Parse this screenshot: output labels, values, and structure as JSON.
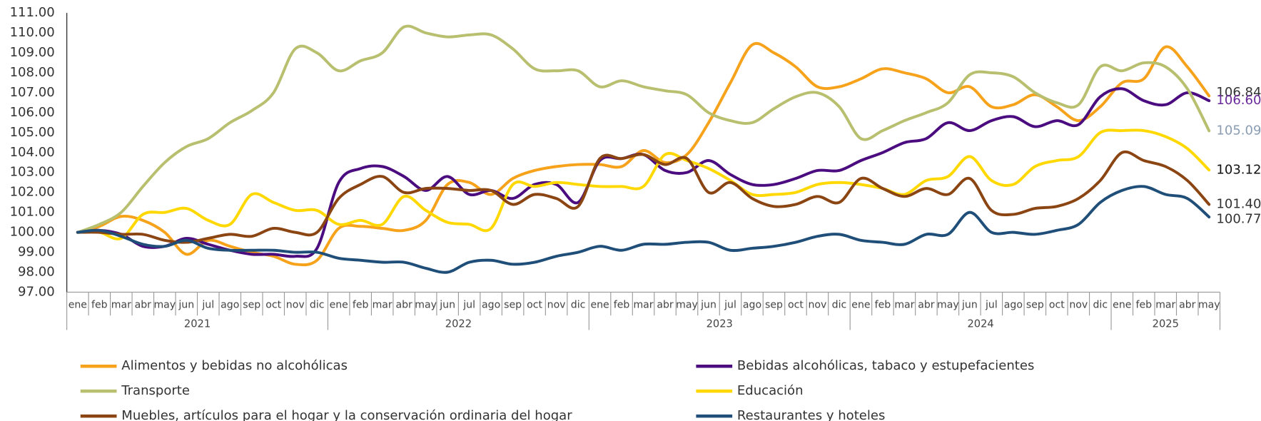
{
  "chart_data": {
    "type": "line",
    "categories": [
      "ene",
      "feb",
      "mar",
      "abr",
      "may",
      "jun",
      "jul",
      "ago",
      "sep",
      "oct",
      "nov",
      "dic",
      "ene",
      "feb",
      "mar",
      "abr",
      "may",
      "jun",
      "jul",
      "ago",
      "sep",
      "oct",
      "nov",
      "dic",
      "ene",
      "feb",
      "mar",
      "abr",
      "may",
      "jun",
      "jul",
      "ago",
      "sep",
      "oct",
      "nov",
      "dic",
      "ene",
      "feb",
      "mar",
      "abr",
      "may",
      "jun",
      "jul",
      "ago",
      "sep",
      "oct",
      "nov",
      "dic",
      "ene",
      "feb",
      "mar",
      "abr",
      "may"
    ],
    "years": [
      "2021",
      "2022",
      "2023",
      "2024",
      "2025"
    ],
    "ylim": [
      97,
      111
    ],
    "yticks": [
      {
        "value": 97,
        "label": "97.00"
      },
      {
        "value": 98,
        "label": "98.00"
      },
      {
        "value": 99,
        "label": "99.00"
      },
      {
        "value": 100,
        "label": "100.00"
      },
      {
        "value": 101,
        "label": "101.00"
      },
      {
        "value": 102,
        "label": "102.00"
      },
      {
        "value": 103,
        "label": "103.00"
      },
      {
        "value": 104,
        "label": "104.00"
      },
      {
        "value": 105,
        "label": "105.00"
      },
      {
        "value": 106,
        "label": "106.00"
      },
      {
        "value": 107,
        "label": "107.00"
      },
      {
        "value": 108,
        "label": "108.00"
      },
      {
        "value": 109,
        "label": "109.00"
      },
      {
        "value": 110,
        "label": "110.00"
      },
      {
        "value": 111,
        "label": "111.00"
      }
    ],
    "grid": false,
    "series": [
      {
        "name": "Alimentos y bebidas no alcohólicas",
        "color": "#f7a21b",
        "label_color": "#333333",
        "values": [
          100.0,
          100.3,
          100.8,
          100.6,
          100.0,
          98.9,
          99.6,
          99.3,
          99.0,
          98.8,
          98.4,
          98.6,
          100.2,
          100.3,
          100.2,
          100.1,
          100.6,
          102.4,
          102.5,
          101.9,
          102.7,
          103.1,
          103.3,
          103.4,
          103.4,
          103.3,
          104.1,
          103.5,
          103.9,
          105.5,
          107.5,
          109.4,
          109.0,
          108.3,
          107.3,
          107.3,
          107.7,
          108.2,
          108.0,
          107.7,
          107.0,
          107.3,
          106.3,
          106.4,
          106.9,
          106.3,
          105.6,
          106.3,
          107.5,
          107.7,
          109.3,
          108.3,
          106.84
        ],
        "value_labels": [
          null,
          null,
          null,
          null,
          null,
          null,
          null,
          null,
          null,
          null,
          null,
          null,
          null,
          null,
          null,
          null,
          null,
          null,
          null,
          null,
          null,
          null,
          null,
          null,
          null,
          null,
          null,
          null,
          null,
          null,
          null,
          null,
          null,
          null,
          null,
          null,
          null,
          null,
          null,
          null,
          null,
          null,
          null,
          null,
          null,
          null,
          null,
          null,
          null,
          null,
          null,
          null,
          "106.84"
        ]
      },
      {
        "name": "Bebidas alcohólicas, tabaco y estupefacientes",
        "color": "#4b0c7f",
        "label_color": "#6a2a9a",
        "values": [
          100.0,
          100.1,
          99.9,
          99.3,
          99.3,
          99.7,
          99.4,
          99.1,
          98.9,
          98.9,
          98.8,
          99.2,
          102.5,
          103.2,
          103.3,
          102.8,
          102.1,
          102.8,
          101.9,
          102.1,
          101.7,
          102.4,
          102.4,
          101.5,
          103.6,
          103.7,
          103.9,
          103.1,
          103.0,
          103.6,
          102.9,
          102.4,
          102.4,
          102.7,
          103.1,
          103.1,
          103.6,
          104.0,
          104.5,
          104.7,
          105.5,
          105.1,
          105.6,
          105.8,
          105.3,
          105.6,
          105.4,
          106.8,
          107.2,
          106.6,
          106.4,
          107.0,
          106.6
        ],
        "value_labels": [
          null,
          null,
          null,
          null,
          null,
          null,
          null,
          null,
          null,
          null,
          null,
          null,
          null,
          null,
          null,
          null,
          null,
          null,
          null,
          null,
          null,
          null,
          null,
          null,
          null,
          null,
          null,
          null,
          null,
          null,
          null,
          null,
          null,
          null,
          null,
          null,
          null,
          null,
          null,
          null,
          null,
          null,
          null,
          null,
          null,
          null,
          null,
          null,
          null,
          null,
          null,
          null,
          "106.60"
        ]
      },
      {
        "name": "Transporte",
        "color": "#b8bf6e",
        "label_color": "#8a9db3",
        "values": [
          100.0,
          100.4,
          101.0,
          102.3,
          103.5,
          104.3,
          104.7,
          105.5,
          106.1,
          107.0,
          109.2,
          109.0,
          108.1,
          108.6,
          109.0,
          110.3,
          110.0,
          109.8,
          109.9,
          109.9,
          109.2,
          108.2,
          108.1,
          108.1,
          107.3,
          107.6,
          107.3,
          107.1,
          106.9,
          106.0,
          105.6,
          105.5,
          106.2,
          106.8,
          107.0,
          106.3,
          104.7,
          105.1,
          105.6,
          106.0,
          106.5,
          107.9,
          108.0,
          107.8,
          107.0,
          106.5,
          106.4,
          108.3,
          108.1,
          108.5,
          108.3,
          107.2,
          105.09
        ],
        "value_labels": [
          null,
          null,
          null,
          null,
          null,
          null,
          null,
          null,
          null,
          null,
          null,
          null,
          null,
          null,
          null,
          null,
          null,
          null,
          null,
          null,
          null,
          null,
          null,
          null,
          null,
          null,
          null,
          null,
          null,
          null,
          null,
          null,
          null,
          null,
          null,
          null,
          null,
          null,
          null,
          null,
          null,
          null,
          null,
          null,
          null,
          null,
          null,
          null,
          null,
          null,
          null,
          null,
          "105.09"
        ]
      },
      {
        "name": "Educación",
        "color": "#ffd800",
        "label_color": "#111111",
        "values": [
          100.0,
          100.0,
          99.7,
          100.9,
          101.0,
          101.2,
          100.6,
          100.4,
          101.9,
          101.5,
          101.1,
          101.1,
          100.4,
          100.6,
          100.4,
          101.8,
          101.1,
          100.5,
          100.4,
          100.2,
          102.4,
          102.3,
          102.5,
          102.4,
          102.3,
          102.3,
          102.3,
          103.9,
          103.6,
          103.2,
          102.6,
          101.9,
          101.9,
          102.0,
          102.4,
          102.5,
          102.4,
          102.2,
          101.9,
          102.6,
          102.8,
          103.8,
          102.6,
          102.4,
          103.3,
          103.6,
          103.8,
          105.0,
          105.1,
          105.1,
          104.8,
          104.2,
          103.12
        ],
        "value_labels": [
          null,
          null,
          null,
          null,
          null,
          null,
          null,
          null,
          null,
          null,
          null,
          null,
          null,
          null,
          null,
          null,
          null,
          null,
          null,
          null,
          null,
          null,
          null,
          null,
          null,
          null,
          null,
          null,
          null,
          null,
          null,
          null,
          null,
          null,
          null,
          null,
          null,
          null,
          null,
          null,
          null,
          null,
          null,
          null,
          null,
          null,
          null,
          null,
          null,
          null,
          null,
          null,
          "103.12"
        ]
      },
      {
        "name": "Muebles, artículos para el hogar y la conservación ordinaria del hogar",
        "color": "#8b4513",
        "label_color": "#333333",
        "values": [
          100.0,
          100.0,
          99.9,
          99.9,
          99.6,
          99.5,
          99.7,
          99.9,
          99.8,
          100.2,
          100.0,
          100.0,
          101.7,
          102.4,
          102.8,
          102.0,
          102.2,
          102.2,
          102.1,
          102.1,
          101.4,
          101.9,
          101.7,
          101.3,
          103.7,
          103.7,
          103.9,
          103.4,
          103.7,
          102.0,
          102.5,
          101.7,
          101.3,
          101.4,
          101.8,
          101.5,
          102.7,
          102.2,
          101.8,
          102.2,
          101.9,
          102.7,
          101.1,
          100.9,
          101.2,
          101.3,
          101.7,
          102.6,
          104.0,
          103.6,
          103.3,
          102.6,
          101.4
        ],
        "value_labels": [
          null,
          null,
          null,
          null,
          null,
          null,
          null,
          null,
          null,
          null,
          null,
          null,
          null,
          null,
          null,
          null,
          null,
          null,
          null,
          null,
          null,
          null,
          null,
          null,
          null,
          null,
          null,
          null,
          null,
          null,
          null,
          null,
          null,
          null,
          null,
          null,
          null,
          null,
          null,
          null,
          null,
          null,
          null,
          null,
          null,
          null,
          null,
          null,
          null,
          null,
          null,
          null,
          "101.40"
        ]
      },
      {
        "name": "Restaurantes y hoteles",
        "color": "#1f4e79",
        "label_color": "#333333",
        "values": [
          100.0,
          100.1,
          99.8,
          99.4,
          99.3,
          99.6,
          99.2,
          99.1,
          99.1,
          99.1,
          99.0,
          99.0,
          98.7,
          98.6,
          98.5,
          98.5,
          98.2,
          98.0,
          98.5,
          98.6,
          98.4,
          98.5,
          98.8,
          99.0,
          99.3,
          99.1,
          99.4,
          99.4,
          99.5,
          99.5,
          99.1,
          99.2,
          99.3,
          99.5,
          99.8,
          99.9,
          99.6,
          99.5,
          99.4,
          99.9,
          99.9,
          101.0,
          100.0,
          100.0,
          99.9,
          100.1,
          100.4,
          101.5,
          102.1,
          102.3,
          101.9,
          101.7,
          100.77
        ],
        "value_labels": [
          null,
          null,
          null,
          null,
          null,
          null,
          null,
          null,
          null,
          null,
          null,
          null,
          null,
          null,
          null,
          null,
          null,
          null,
          null,
          null,
          null,
          null,
          null,
          null,
          null,
          null,
          null,
          null,
          null,
          null,
          null,
          null,
          null,
          null,
          null,
          null,
          null,
          null,
          null,
          null,
          null,
          null,
          null,
          null,
          null,
          null,
          null,
          null,
          null,
          null,
          null,
          null,
          "100.77"
        ]
      }
    ]
  }
}
